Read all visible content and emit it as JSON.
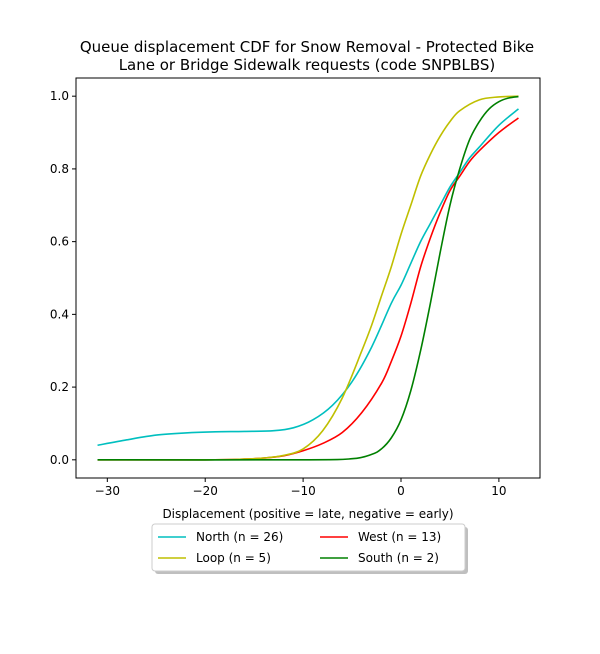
{
  "chart_data": {
    "type": "line",
    "title_lines": [
      "Queue displacement CDF for Snow Removal - Protected Bike",
      "Lane or Bridge Sidewalk  requests (code SNPBLBS)"
    ],
    "xlabel": "Displacement (positive = late, negative = early)",
    "ylabel": "",
    "xlim": [
      -33.2,
      14.2
    ],
    "ylim": [
      -0.05,
      1.05
    ],
    "xticks": [
      -30,
      -20,
      -10,
      0,
      10
    ],
    "yticks": [
      0.0,
      0.2,
      0.4,
      0.6,
      0.8,
      1.0
    ],
    "xtick_labels": [
      "−30",
      "−20",
      "−10",
      "0",
      "10"
    ],
    "ytick_labels": [
      "0.0",
      "0.2",
      "0.4",
      "0.6",
      "0.8",
      "1.0"
    ],
    "grid": false,
    "legend_position": "below-center",
    "series": [
      {
        "name": "North (n = 26)",
        "color": "#00bfbf",
        "x": [
          -31,
          -28,
          -25,
          -22,
          -19,
          -16,
          -13,
          -11,
          -9,
          -7,
          -5,
          -3,
          -1,
          0,
          1,
          2,
          3,
          4,
          5,
          6,
          7,
          8,
          10,
          12
        ],
        "y": [
          0.04,
          0.055,
          0.068,
          0.074,
          0.077,
          0.078,
          0.08,
          0.088,
          0.11,
          0.15,
          0.215,
          0.31,
          0.43,
          0.48,
          0.54,
          0.6,
          0.65,
          0.7,
          0.75,
          0.79,
          0.83,
          0.86,
          0.92,
          0.965
        ]
      },
      {
        "name": "West (n = 13)",
        "color": "#ff0000",
        "x": [
          -31,
          -20,
          -16,
          -14,
          -12,
          -10,
          -8,
          -6,
          -4,
          -2,
          -1,
          0,
          1,
          2,
          3,
          4,
          5,
          6,
          7,
          8,
          10,
          12
        ],
        "y": [
          0.0,
          0.0,
          0.002,
          0.005,
          0.011,
          0.025,
          0.045,
          0.075,
          0.13,
          0.21,
          0.27,
          0.34,
          0.43,
          0.53,
          0.61,
          0.68,
          0.74,
          0.78,
          0.82,
          0.85,
          0.9,
          0.94
        ]
      },
      {
        "name": "Loop (n = 5)",
        "color": "#bfbf00",
        "x": [
          -31,
          -20,
          -16,
          -14,
          -12,
          -10,
          -8,
          -6,
          -4,
          -3,
          -2,
          -1,
          0,
          1,
          2,
          3,
          4,
          5,
          6,
          8,
          10,
          12
        ],
        "y": [
          0.0,
          0.0,
          0.002,
          0.005,
          0.012,
          0.03,
          0.08,
          0.17,
          0.3,
          0.37,
          0.45,
          0.53,
          0.62,
          0.7,
          0.78,
          0.84,
          0.89,
          0.93,
          0.96,
          0.99,
          0.998,
          1.0
        ]
      },
      {
        "name": "South (n = 2)",
        "color": "#008000",
        "x": [
          -31,
          -10,
          -5,
          -3,
          -2,
          -1,
          0,
          1,
          2,
          3,
          4,
          5,
          6,
          7,
          8,
          9,
          10,
          11,
          12
        ],
        "y": [
          0.0,
          0.0,
          0.003,
          0.015,
          0.03,
          0.06,
          0.11,
          0.19,
          0.3,
          0.43,
          0.57,
          0.7,
          0.8,
          0.88,
          0.93,
          0.965,
          0.985,
          0.995,
          0.999
        ]
      }
    ]
  }
}
